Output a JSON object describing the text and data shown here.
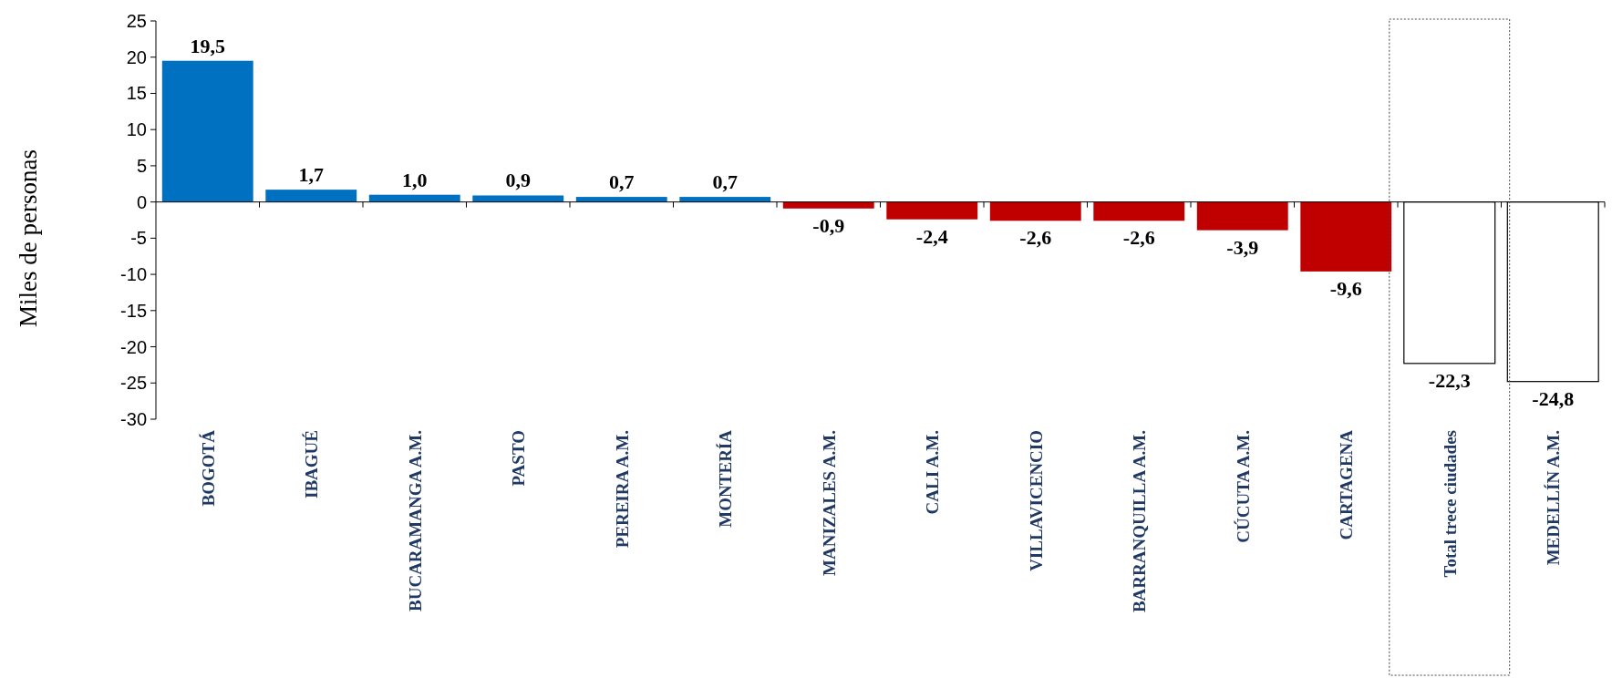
{
  "chart_data": {
    "type": "bar",
    "ylabel": "Miles de personas",
    "categories": [
      "BOGOTÁ",
      "IBAGUÉ",
      "BUCARAMANGA A.M.",
      "PASTO",
      "PEREIRA A.M.",
      "MONTERÍA",
      "MANIZALES A.M.",
      "CALI  A.M.",
      "VILLAVICENCIO",
      "BARRANQUILLA A.M.",
      "CÚCUTA A.M.",
      "CARTAGENA",
      "Total trece ciudades",
      "MEDELLÍN A.M."
    ],
    "values": [
      19.5,
      1.7,
      1.0,
      0.9,
      0.7,
      0.7,
      -0.9,
      -2.4,
      -2.6,
      -2.6,
      -3.9,
      -9.6,
      -22.3,
      -24.8
    ],
    "colors": [
      "#0070c0",
      "#0070c0",
      "#0070c0",
      "#0070c0",
      "#0070c0",
      "#0070c0",
      "#c00000",
      "#c00000",
      "#c00000",
      "#c00000",
      "#c00000",
      "#c00000",
      "#ffffff",
      "#ffffff"
    ],
    "ylim": [
      -30,
      25
    ],
    "yticks": [
      -30,
      -25,
      -20,
      -15,
      -10,
      -5,
      0,
      5,
      10,
      15,
      20,
      25
    ],
    "value_labels": [
      "19,5",
      "1,7",
      "1,0",
      "0,9",
      "0,7",
      "0,7",
      "-0,9",
      "-2,4",
      "-2,6",
      "-2,6",
      "-3,9",
      "-9,6",
      "-22,3",
      "-24,8"
    ]
  }
}
